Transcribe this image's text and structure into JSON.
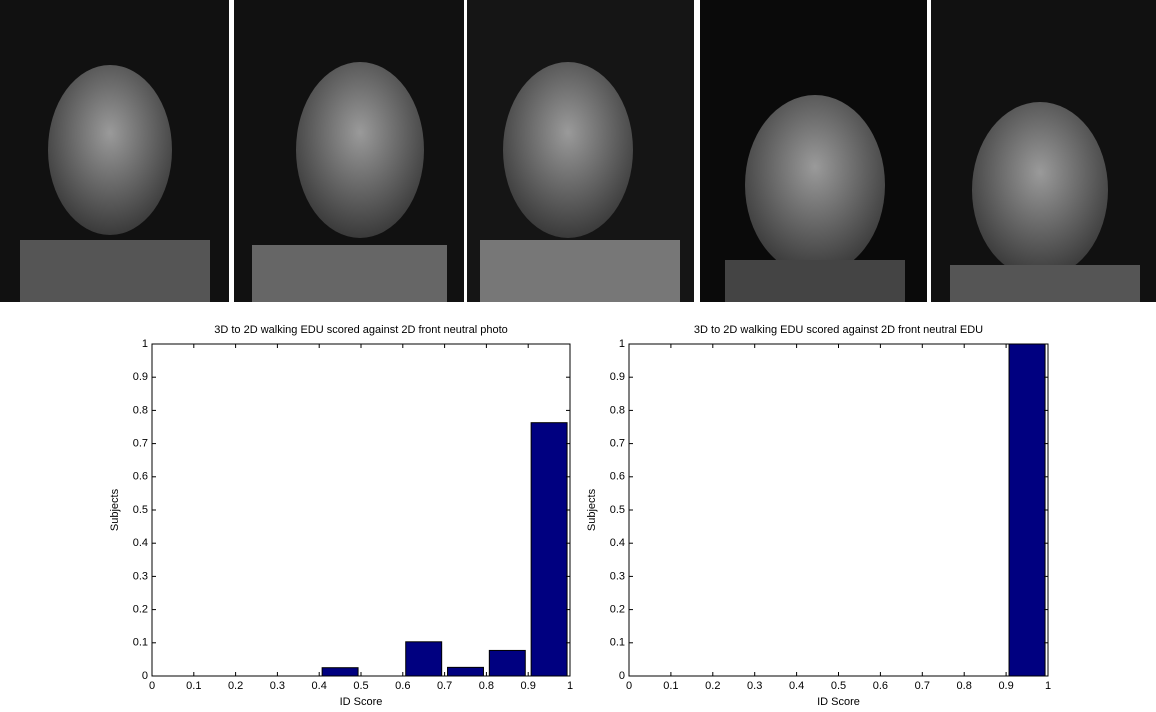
{
  "chart_data": [
    {
      "type": "histogram",
      "title": "3D to 2D walking EDU scored against 2D front neutral photo",
      "x_label": "ID Score",
      "y_label": "Subjects",
      "bins": [
        0,
        0.1,
        0.2,
        0.3,
        0.4,
        0.5,
        0.6,
        0.7,
        0.8,
        0.9,
        1
      ],
      "counts": [
        0,
        0,
        0,
        0,
        0.025,
        0,
        0.103,
        0.026,
        0.077,
        0.763
      ],
      "color": "#000080",
      "xlim": [
        0,
        1
      ],
      "ylim": [
        0,
        1
      ],
      "xticks": [
        0,
        0.1,
        0.2,
        0.3,
        0.4,
        0.5,
        0.6,
        0.7,
        0.8,
        0.9,
        1
      ],
      "yticks": [
        0,
        0.1,
        0.2,
        0.3,
        0.4,
        0.5,
        0.6,
        0.7,
        0.8,
        0.9,
        1
      ]
    },
    {
      "type": "histogram",
      "title": "3D to 2D walking EDU scored against 2D front neutral EDU",
      "x_label": "ID Score",
      "y_label": "Subjects",
      "bins": [
        0,
        0.1,
        0.2,
        0.3,
        0.4,
        0.5,
        0.6,
        0.7,
        0.8,
        0.9,
        1
      ],
      "counts": [
        0,
        0,
        0,
        0,
        0,
        0,
        0,
        0,
        0,
        1
      ],
      "color": "#000080",
      "xlim": [
        0,
        1
      ],
      "ylim": [
        0,
        1
      ],
      "xticks": [
        0,
        0.1,
        0.2,
        0.3,
        0.4,
        0.5,
        0.6,
        0.7,
        0.8,
        0.9,
        1
      ],
      "yticks": [
        0,
        0.1,
        0.2,
        0.3,
        0.4,
        0.5,
        0.6,
        0.7,
        0.8,
        0.9,
        1
      ]
    }
  ]
}
